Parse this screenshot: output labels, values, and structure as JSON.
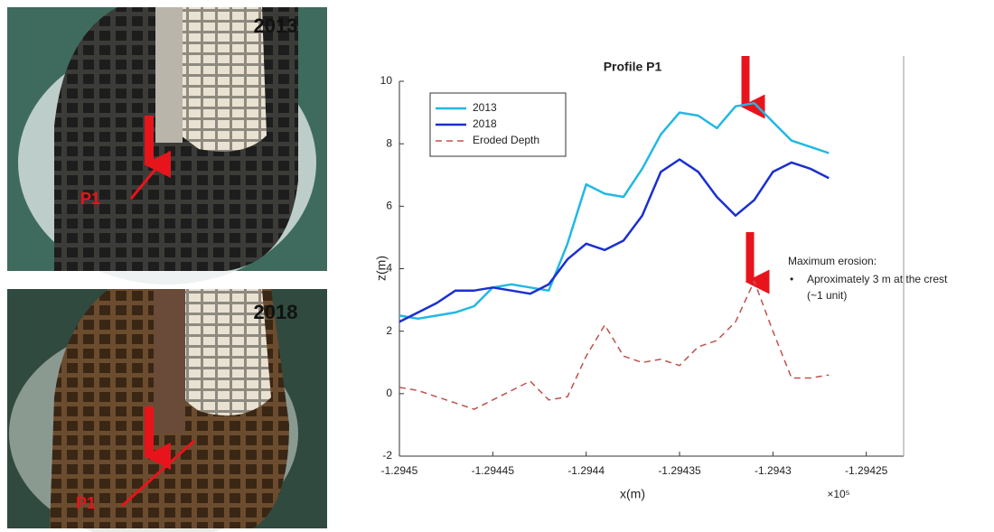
{
  "photos": [
    {
      "year": "2013",
      "profile_label": "P1"
    },
    {
      "year": "2018",
      "profile_label": "P1"
    }
  ],
  "chart_data": {
    "type": "line",
    "title": "Profile P1",
    "x_label": "x(m)",
    "y_label": "z(m)",
    "x_multiplier": "×10⁵",
    "x": [
      -1.2945,
      -1.29449,
      -1.29448,
      -1.29447,
      -1.29446,
      -1.29445,
      -1.29444,
      -1.29443,
      -1.29442,
      -1.29441,
      -1.2944,
      -1.29439,
      -1.29438,
      -1.29437,
      -1.29436,
      -1.29435,
      -1.29434,
      -1.29433,
      -1.29432,
      -1.29431,
      -1.2943,
      -1.29429,
      -1.29428,
      -1.29427
    ],
    "series": [
      {
        "name": "2013",
        "color": "#22b8e3",
        "style": "solid",
        "values": [
          2.5,
          2.4,
          2.5,
          2.6,
          2.8,
          3.4,
          3.5,
          3.4,
          3.3,
          4.8,
          6.7,
          6.4,
          6.3,
          7.2,
          8.3,
          9.0,
          8.9,
          8.5,
          9.2,
          9.3,
          8.7,
          8.1,
          7.9,
          7.7
        ]
      },
      {
        "name": "2018",
        "color": "#1b2fd1",
        "style": "solid",
        "values": [
          2.3,
          2.6,
          2.9,
          3.3,
          3.3,
          3.4,
          3.3,
          3.2,
          3.5,
          4.3,
          4.8,
          4.6,
          4.9,
          5.7,
          7.1,
          7.5,
          7.1,
          6.3,
          5.7,
          6.2,
          7.1,
          7.4,
          7.2,
          6.9
        ]
      },
      {
        "name": "Eroded Depth",
        "color": "#c0504d",
        "style": "dashed",
        "values": [
          0.2,
          0.1,
          -0.1,
          -0.3,
          -0.5,
          -0.2,
          0.1,
          0.4,
          -0.2,
          -0.1,
          1.2,
          2.2,
          1.2,
          1.0,
          1.1,
          0.9,
          1.5,
          1.7,
          2.3,
          3.6,
          2.0,
          0.5,
          0.5,
          0.6
        ]
      }
    ],
    "xlim": [
      -1.2945,
      -1.29423
    ],
    "xticks": [
      -1.2945,
      -1.29445,
      -1.2944,
      -1.29435,
      -1.2943,
      -1.29425
    ],
    "ylim": [
      -2,
      10
    ],
    "yticks": [
      -2,
      0,
      2,
      4,
      6,
      8,
      10
    ],
    "legend": "upper-left",
    "annotations": [
      "Maximum erosion:",
      "Aproximately 3 m at the  crest",
      "(~1 unit)"
    ]
  }
}
